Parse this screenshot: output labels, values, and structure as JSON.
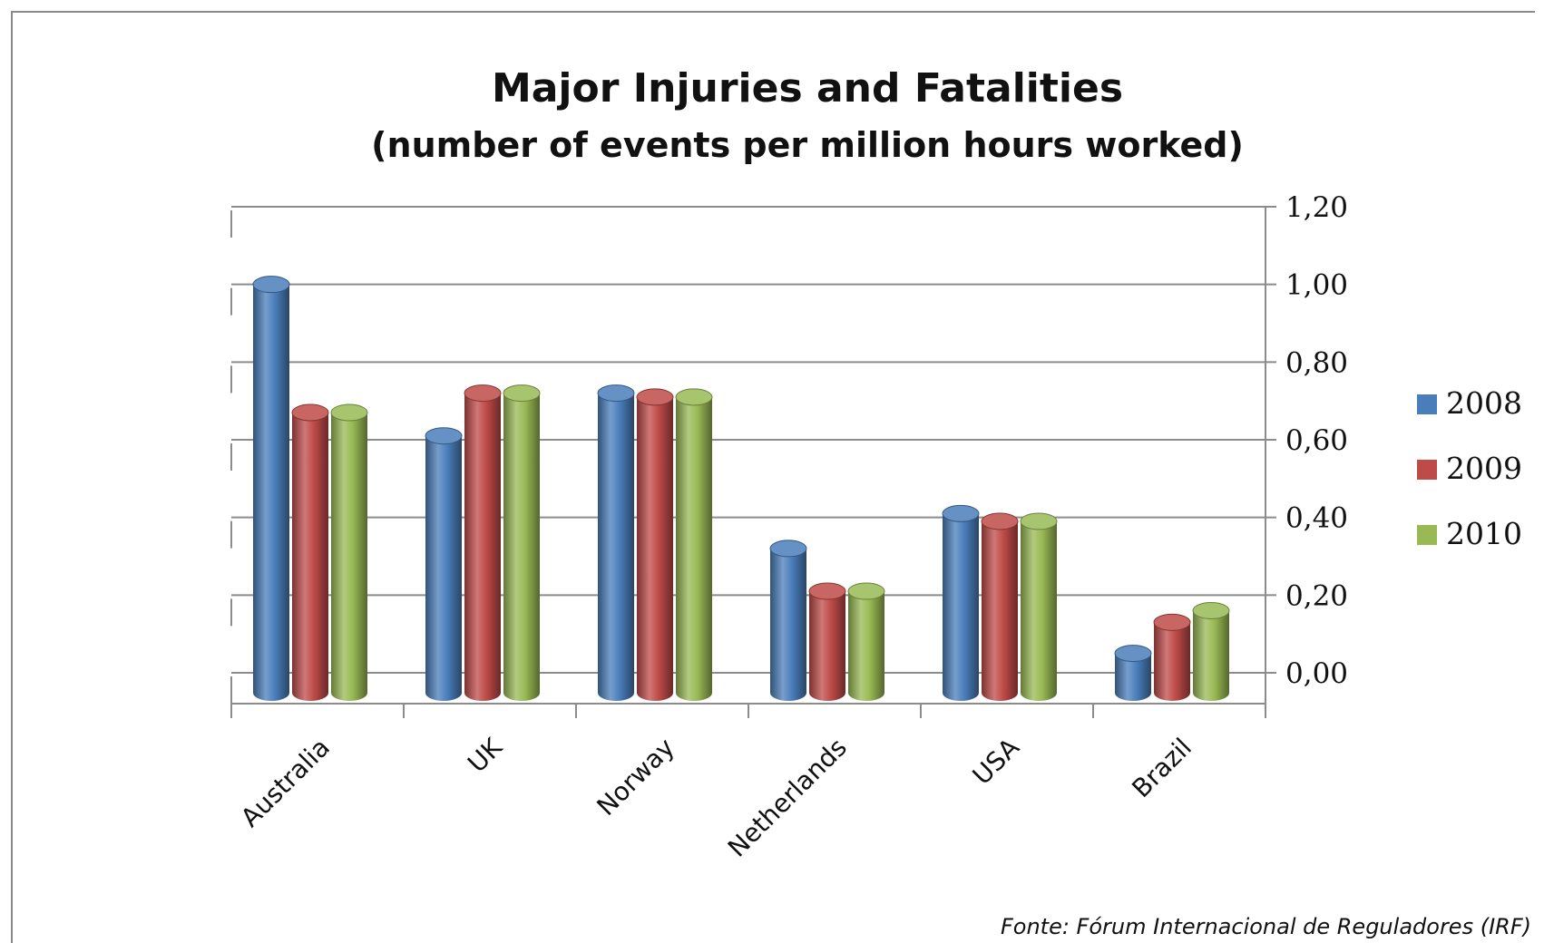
{
  "chart_data": {
    "type": "bar",
    "title": "Major Injuries and Fatalities",
    "subtitle": "(number of events per million hours worked)",
    "source": "Fonte: Fórum Internacional de Reguladores (IRF)",
    "categories": [
      "Australia",
      "UK",
      "Norway",
      "Netherlands",
      "USA",
      "Brazil"
    ],
    "series": [
      {
        "name": "2008",
        "color": "#4a7ebb",
        "values": [
          1.0,
          0.61,
          0.72,
          0.32,
          0.41,
          0.05
        ]
      },
      {
        "name": "2009",
        "color": "#be4b48",
        "values": [
          0.67,
          0.72,
          0.71,
          0.21,
          0.39,
          0.13
        ]
      },
      {
        "name": "2010",
        "color": "#98b954",
        "values": [
          0.67,
          0.72,
          0.71,
          0.21,
          0.39,
          0.16
        ]
      }
    ],
    "y_ticks": [
      "0,00",
      "0,20",
      "0,40",
      "0,60",
      "0,80",
      "1,00",
      "1,20"
    ],
    "ylim": [
      0,
      1.2
    ],
    "y_axis_side": "right",
    "grid": true,
    "legend_position": "right"
  }
}
